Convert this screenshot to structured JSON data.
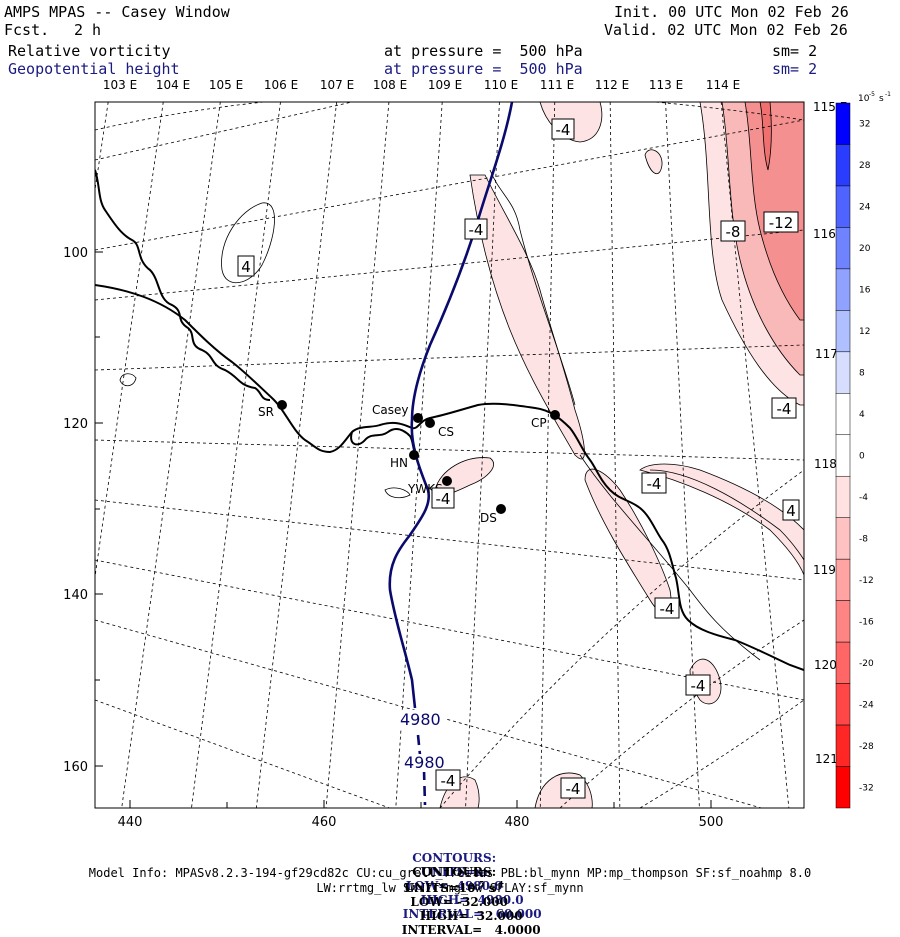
{
  "header": {
    "title": "AMPS MPAS -- Casey Window",
    "fcst_label": "Fcst.",
    "fcst_value": "2 h",
    "init": "Init. 00 UTC Mon 02 Feb 26",
    "valid": "Valid. 02 UTC Mon 02 Feb 26",
    "field1": "Relative vorticity",
    "field1_pressure": "at pressure =  500 hPa",
    "field1_sm": "sm= 2",
    "field2": "Geopotential height",
    "field2_pressure": "at pressure =  500 hPa",
    "field2_sm": "sm= 2"
  },
  "axes": {
    "x_ticks": [
      "440",
      "460",
      "480",
      "500"
    ],
    "y_ticks": [
      "100",
      "120",
      "140",
      "160"
    ],
    "lon_top": [
      "103 E",
      "104 E",
      "105 E",
      "106 E",
      "107 E",
      "108 E",
      "109 E",
      "110 E",
      "111 E",
      "112 E",
      "113 E",
      "114 E"
    ],
    "lat_right": [
      "115 E",
      "116 E",
      "117 E",
      "118 E",
      "119 E",
      "120 E",
      "121 E"
    ]
  },
  "stations": [
    {
      "name": "SR"
    },
    {
      "name": "Casey"
    },
    {
      "name": "CS"
    },
    {
      "name": "CP"
    },
    {
      "name": "HN"
    },
    {
      "name": "YWKS"
    },
    {
      "name": "DS"
    }
  ],
  "contour_labels": {
    "height": [
      "4980",
      "4980"
    ],
    "vorticity": [
      "-4",
      "-4",
      "-12",
      "-8",
      "4",
      "-4",
      "-4",
      "4",
      "-4",
      "-4",
      "-4",
      "-4",
      "-4"
    ]
  },
  "colorbar": {
    "unit": "10",
    "unit_exp": "-5",
    "unit_suffix": "s",
    "unit_suffix_exp": "-1",
    "levels": [
      "32",
      "28",
      "24",
      "20",
      "16",
      "12",
      "8",
      "4",
      "0",
      "-4",
      "-8",
      "-12",
      "-16",
      "-20",
      "-24",
      "-28",
      "-32"
    ],
    "colors": [
      "#0000ff",
      "#2a3dff",
      "#4f63ff",
      "#7083ff",
      "#90a2ff",
      "#b0bfff",
      "#d6ddff",
      "#ffffff",
      "#ffffff",
      "#ffe1e1",
      "#ffc2c2",
      "#ffa3a3",
      "#ff8585",
      "#ff6666",
      "#ff4747",
      "#ff2626",
      "#ff0000"
    ]
  },
  "footer": {
    "contours1_label": "CONTOURS:",
    "contours1_units": "UNITS=m",
    "contours1_low": "LOW=  4980.0",
    "contours1_high": "HIGH=  4980.0",
    "contours1_interval": "INTERVAL=   60.000",
    "contours2_label": "CONTOURS:",
    "contours2_units": "UNITS=10",
    "contours2_units_exp1": "-5",
    "contours2_units_s": " s",
    "contours2_units_exp2": "-1",
    "contours2_low": "LOW= -32.000",
    "contours2_high": "HIGH=  32.000",
    "contours2_interval": "INTERVAL=   4.0000",
    "model_info": "Model Info: MPASv8.2.3-194-gf29cd82c CU:cu_grell_freitas PBL:bl_mynn MP:mp_thompson SF:sf_noahmp 8.0",
    "model_info2": "LW:rrtmg_lw SW:rrtmg_sw SFLAY:sf_mynn"
  },
  "colors": {
    "height_contour": "#0a0a6e",
    "coast": "#000000",
    "vort_fill_light": "#fde3e3",
    "vort_fill_mid": "#f9b9b9",
    "vort_fill_strong": "#f59090"
  }
}
